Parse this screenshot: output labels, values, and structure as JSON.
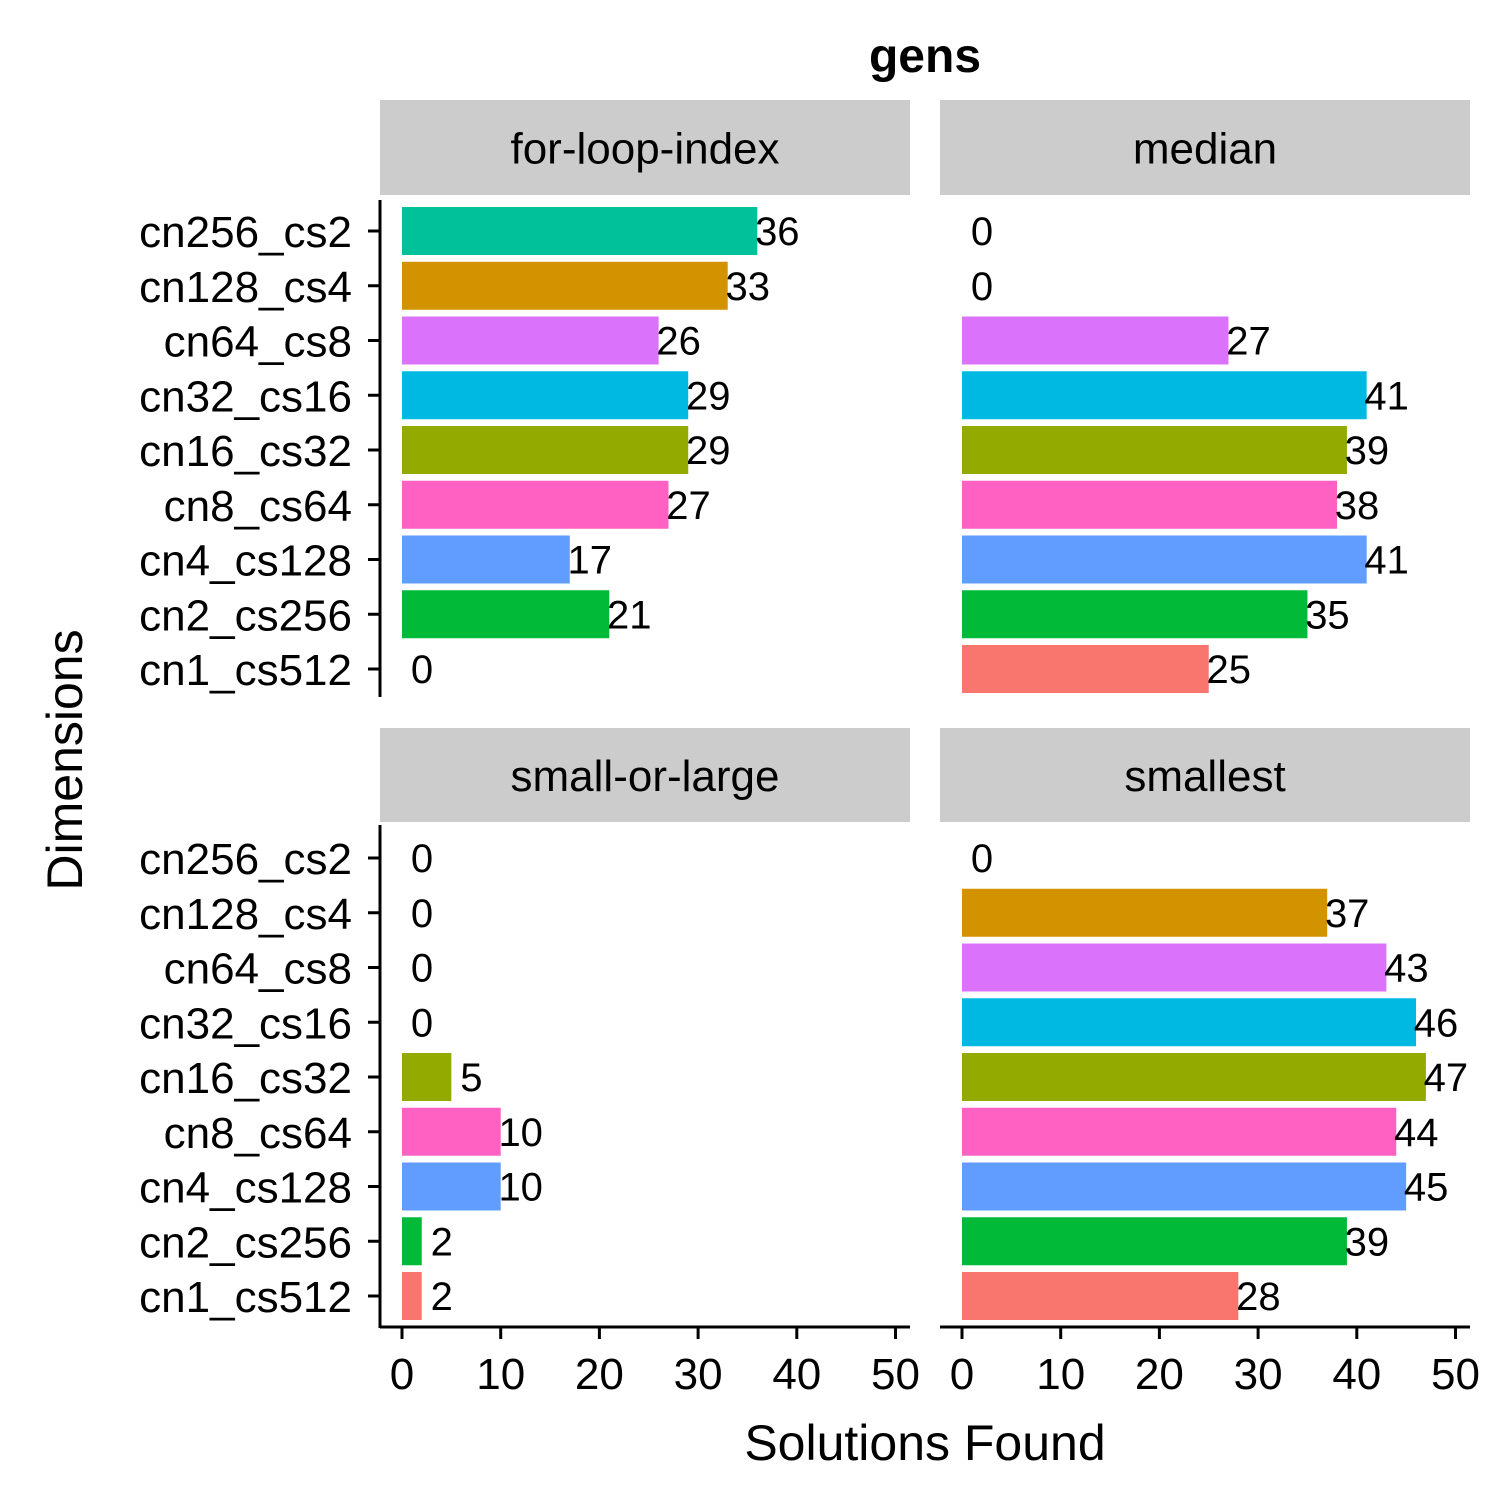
{
  "chart_data": {
    "type": "bar",
    "orientation": "horizontal",
    "title": "gens",
    "xlabel": "Solutions Found",
    "ylabel": "Dimensions",
    "xlim": [
      0,
      50
    ],
    "x_ticks": [
      0,
      10,
      20,
      30,
      40,
      50
    ],
    "grid": false,
    "legend": "none",
    "categories": [
      "cn256_cs2",
      "cn128_cs4",
      "cn64_cs8",
      "cn32_cs16",
      "cn16_cs32",
      "cn8_cs64",
      "cn4_cs128",
      "cn2_cs256",
      "cn1_cs512"
    ],
    "colors": {
      "cn256_cs2": "#00C19A",
      "cn128_cs4": "#D39200",
      "cn64_cs8": "#DB72FB",
      "cn32_cs16": "#00B9E3",
      "cn16_cs32": "#93AA00",
      "cn8_cs64": "#FF61C3",
      "cn4_cs128": "#619CFF",
      "cn2_cs256": "#00BA38",
      "cn1_cs512": "#F8766D"
    },
    "panels": [
      {
        "name": "for-loop-index",
        "values": [
          36,
          33,
          26,
          29,
          29,
          27,
          17,
          21,
          0
        ]
      },
      {
        "name": "median",
        "values": [
          0,
          0,
          27,
          41,
          39,
          38,
          41,
          35,
          25
        ]
      },
      {
        "name": "small-or-large",
        "values": [
          0,
          0,
          0,
          0,
          5,
          10,
          10,
          2,
          2
        ]
      },
      {
        "name": "smallest",
        "values": [
          0,
          37,
          43,
          46,
          47,
          44,
          45,
          39,
          28
        ]
      }
    ]
  }
}
